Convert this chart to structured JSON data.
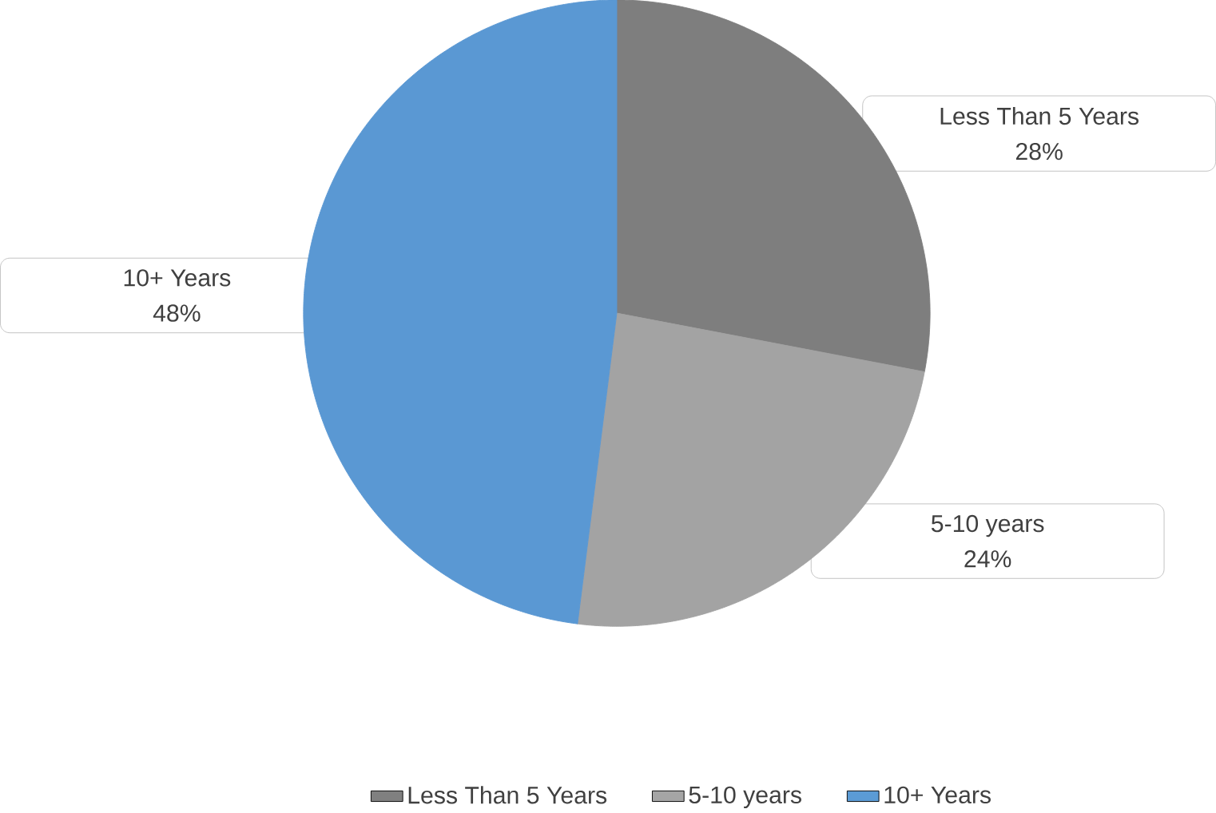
{
  "chart_data": {
    "type": "pie",
    "categories": [
      "Less Than 5 Years",
      "5-10 years",
      "10+ Years"
    ],
    "values": [
      28,
      24,
      48
    ],
    "value_labels": [
      "28%",
      "24%",
      "48%"
    ],
    "colors": [
      "#808080",
      "#a5a5a5",
      "#5b9bd5"
    ],
    "legend": "bottom"
  }
}
